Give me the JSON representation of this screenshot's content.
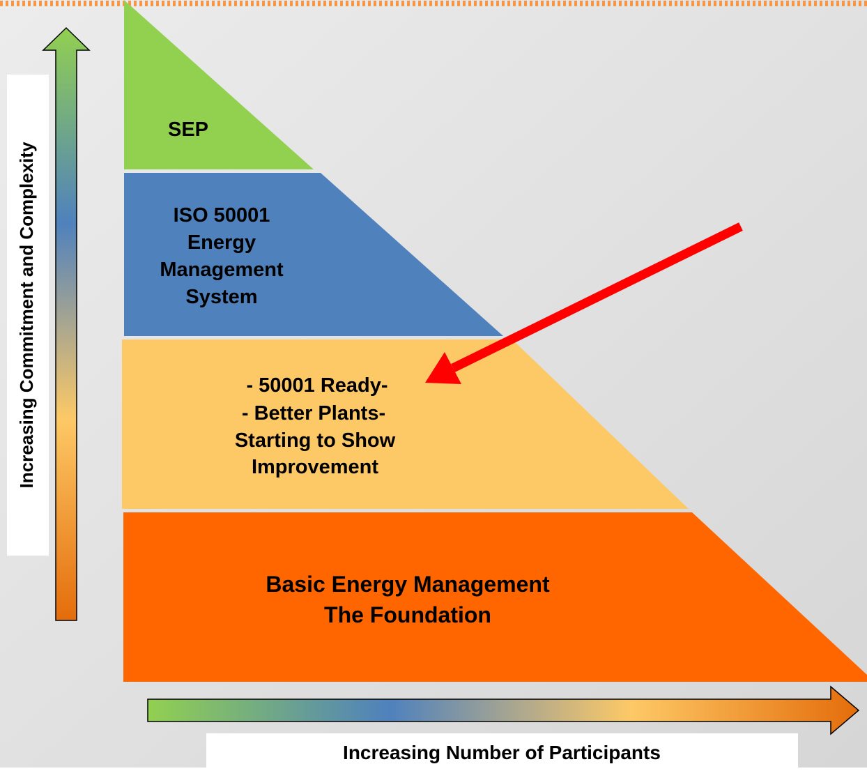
{
  "axes": {
    "vertical": "Increasing Commitment and Complexity",
    "horizontal": "Increasing Number of Participants"
  },
  "tiers": [
    {
      "lines": [
        "SEP"
      ]
    },
    {
      "lines": [
        "ISO 50001",
        "Energy",
        "Management",
        "System"
      ]
    },
    {
      "lines": [
        "- 50001 Ready-",
        "- Better Plants-",
        "Starting to Show",
        "Improvement"
      ]
    },
    {
      "lines": [
        "Basic Energy Management",
        "The Foundation"
      ]
    }
  ]
}
